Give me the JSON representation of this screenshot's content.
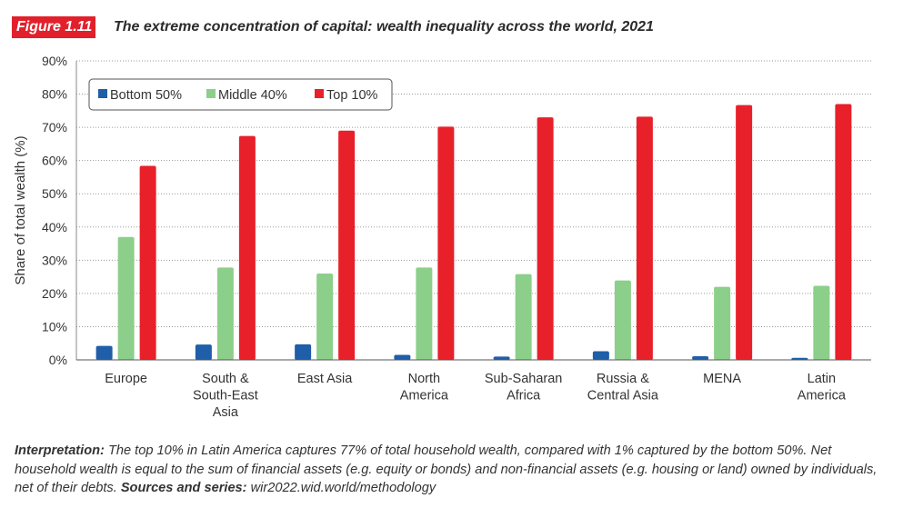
{
  "figure": {
    "badge": "Figure 1.11",
    "title": "The extreme concentration of capital: wealth inequality across the world, 2021"
  },
  "chart_data": {
    "type": "bar",
    "categories": [
      [
        "Europe"
      ],
      [
        "South &",
        "South-East",
        "Asia"
      ],
      [
        "East Asia"
      ],
      [
        "North",
        "America"
      ],
      [
        "Sub-Saharan",
        "Africa"
      ],
      [
        "Russia &",
        "Central Asia"
      ],
      [
        "MENA"
      ],
      [
        "Latin",
        "America"
      ]
    ],
    "series": [
      {
        "name": "Bottom 50%",
        "color": "#1f5ea8",
        "values": [
          4.2,
          4.6,
          4.7,
          1.5,
          1.0,
          2.6,
          1.1,
          0.6
        ]
      },
      {
        "name": "Middle 40%",
        "color": "#8ccf8a",
        "values": [
          37.0,
          27.8,
          26.0,
          27.8,
          25.8,
          23.9,
          22.0,
          22.3
        ]
      },
      {
        "name": "Top 10%",
        "color": "#e8202a",
        "values": [
          58.4,
          67.4,
          69.0,
          70.2,
          73.0,
          73.2,
          76.7,
          77.0
        ]
      }
    ],
    "ylabel": "Share of total wealth (%)",
    "ylim": [
      0,
      90
    ],
    "yticks": [
      "0%",
      "10%",
      "20%",
      "30%",
      "40%",
      "50%",
      "60%",
      "70%",
      "80%",
      "90%"
    ],
    "grid": "dotted horizontal",
    "legend_position": "top-left"
  },
  "note": {
    "interpretation_label": "Interpretation:",
    "interpretation_text": " The top 10% in Latin America captures 77% of total household wealth, compared with 1% captured by the bottom 50%. Net household wealth is equal to the sum of financial assets (e.g. equity or bonds) and non-financial assets (e.g. housing or land) owned by individuals, net of their debts. ",
    "sources_label": "Sources and series:",
    "sources_text": " wir2022.wid.world/methodology"
  }
}
